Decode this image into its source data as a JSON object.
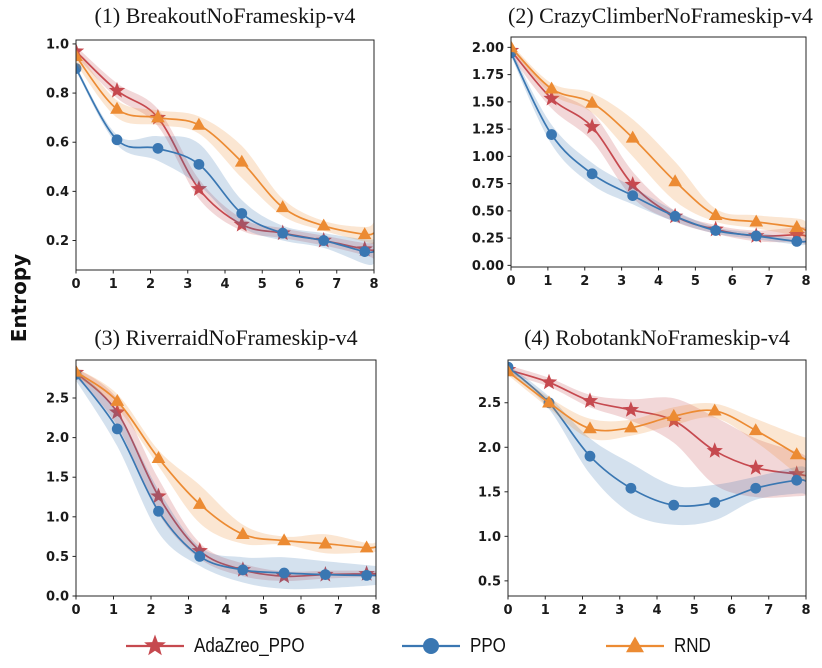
{
  "ylabel": "Entropy",
  "legend": [
    {
      "label": "AdaZreo_PPO",
      "marker": "star",
      "color": "#c6494f"
    },
    {
      "label": "PPO",
      "marker": "circle",
      "color": "#3a77b2"
    },
    {
      "label": "RND",
      "marker": "triangle",
      "color": "#ec8b33"
    }
  ],
  "chart_data": [
    {
      "type": "line",
      "title": "(1) BreakoutNoFrameskip-v4",
      "x": [
        0,
        1.1,
        2.2,
        3.3,
        4.45,
        5.55,
        6.65,
        7.75,
        8.0
      ],
      "xlim": [
        0,
        8
      ],
      "ylim": [
        0.08,
        1.016
      ],
      "xtick_values": [
        0,
        1,
        2,
        3,
        4,
        5,
        6,
        7,
        8
      ],
      "xtick_labels": [
        "0",
        "1",
        "2",
        "3",
        "4",
        "5",
        "6",
        "7",
        "8"
      ],
      "ytick_values": [
        0.2,
        0.4,
        0.6,
        0.8,
        1.0
      ],
      "ytick_labels": [
        "0.2",
        "0.4",
        "0.6",
        "0.8",
        "1.0"
      ],
      "series": [
        {
          "name": "AdaZreo_PPO",
          "color": "#c6494f",
          "marker": "star",
          "marker_count": 8,
          "y": [
            0.97,
            0.81,
            0.7,
            0.41,
            0.265,
            0.23,
            0.2,
            0.165,
            0.16
          ],
          "band": [
            0.02,
            0.03,
            0.035,
            0.04,
            0.025,
            0.02,
            0.02,
            0.025,
            0.035
          ]
        },
        {
          "name": "PPO",
          "color": "#3a77b2",
          "marker": "circle",
          "marker_count": 8,
          "y": [
            0.9,
            0.61,
            0.575,
            0.51,
            0.31,
            0.23,
            0.2,
            0.155,
            0.155
          ],
          "band": [
            0.01,
            0.02,
            0.05,
            0.085,
            0.055,
            0.03,
            0.03,
            0.05,
            0.05
          ]
        },
        {
          "name": "RND",
          "color": "#ec8b33",
          "marker": "triangle",
          "marker_count": 8,
          "y": [
            0.95,
            0.735,
            0.7,
            0.67,
            0.52,
            0.335,
            0.26,
            0.225,
            0.23
          ],
          "band": [
            0.03,
            0.035,
            0.03,
            0.035,
            0.065,
            0.035,
            0.02,
            0.03,
            0.045
          ]
        }
      ]
    },
    {
      "type": "line",
      "title": "(2) CrazyClimberNoFrameskip-v4",
      "x": [
        0,
        1.1,
        2.2,
        3.3,
        4.45,
        5.55,
        6.65,
        7.75,
        8.0
      ],
      "xlim": [
        0,
        8
      ],
      "ylim": [
        -0.015,
        2.095
      ],
      "xtick_values": [
        0,
        1,
        2,
        3,
        4,
        5,
        6,
        7,
        8
      ],
      "xtick_labels": [
        "0",
        "1",
        "2",
        "3",
        "4",
        "5",
        "6",
        "7",
        "8"
      ],
      "ytick_values": [
        0.0,
        0.25,
        0.5,
        0.75,
        1.0,
        1.25,
        1.5,
        1.75,
        2.0
      ],
      "ytick_labels": [
        "0.00",
        "0.25",
        "0.50",
        "0.75",
        "1.00",
        "1.25",
        "1.50",
        "1.75",
        "2.00"
      ],
      "series": [
        {
          "name": "AdaZreo_PPO",
          "color": "#c6494f",
          "marker": "star",
          "marker_count": 8,
          "y": [
            1.97,
            1.53,
            1.27,
            0.74,
            0.45,
            0.33,
            0.27,
            0.28,
            0.27
          ],
          "band": [
            0.05,
            0.09,
            0.13,
            0.12,
            0.05,
            0.04,
            0.05,
            0.07,
            0.08
          ]
        },
        {
          "name": "PPO",
          "color": "#3a77b2",
          "marker": "circle",
          "marker_count": 8,
          "y": [
            1.95,
            1.2,
            0.84,
            0.64,
            0.45,
            0.32,
            0.27,
            0.22,
            0.22
          ],
          "band": [
            0.03,
            0.09,
            0.1,
            0.08,
            0.05,
            0.03,
            0.03,
            0.03,
            0.03
          ]
        },
        {
          "name": "RND",
          "color": "#ec8b33",
          "marker": "triangle",
          "marker_count": 8,
          "y": [
            2.0,
            1.62,
            1.49,
            1.17,
            0.77,
            0.46,
            0.4,
            0.35,
            0.32
          ],
          "band": [
            0.03,
            0.05,
            0.09,
            0.17,
            0.18,
            0.06,
            0.06,
            0.08,
            0.08
          ]
        }
      ]
    },
    {
      "type": "line",
      "title": "(3) RiverraidNoFrameskip-v4",
      "x": [
        0,
        1.1,
        2.2,
        3.3,
        4.45,
        5.55,
        6.65,
        7.75,
        8.0
      ],
      "xlim": [
        0,
        8
      ],
      "ylim": [
        0.0,
        2.98
      ],
      "xtick_values": [
        0,
        1,
        2,
        3,
        4,
        5,
        6,
        7,
        8
      ],
      "xtick_labels": [
        "0",
        "1",
        "2",
        "3",
        "4",
        "5",
        "6",
        "7",
        "8"
      ],
      "ytick_values": [
        0.0,
        0.5,
        1.0,
        1.5,
        2.0,
        2.5
      ],
      "ytick_labels": [
        "0.0",
        "0.5",
        "1.0",
        "1.5",
        "2.0",
        "2.5"
      ],
      "series": [
        {
          "name": "AdaZreo_PPO",
          "color": "#c6494f",
          "marker": "star",
          "marker_count": 8,
          "y": [
            2.82,
            2.32,
            1.26,
            0.57,
            0.33,
            0.25,
            0.27,
            0.28,
            0.28
          ],
          "band": [
            0.06,
            0.17,
            0.22,
            0.1,
            0.08,
            0.06,
            0.05,
            0.04,
            0.04
          ]
        },
        {
          "name": "PPO",
          "color": "#3a77b2",
          "marker": "circle",
          "marker_count": 8,
          "y": [
            2.8,
            2.11,
            1.07,
            0.5,
            0.33,
            0.29,
            0.27,
            0.26,
            0.26
          ],
          "band": [
            0.08,
            0.22,
            0.27,
            0.12,
            0.16,
            0.2,
            0.17,
            0.13,
            0.12
          ]
        },
        {
          "name": "RND",
          "color": "#ec8b33",
          "marker": "triangle",
          "marker_count": 8,
          "y": [
            2.83,
            2.46,
            1.74,
            1.16,
            0.78,
            0.7,
            0.66,
            0.61,
            0.62
          ],
          "band": [
            0.05,
            0.09,
            0.1,
            0.24,
            0.12,
            0.05,
            0.12,
            0.06,
            0.06
          ]
        }
      ]
    },
    {
      "type": "line",
      "title": "(4) RobotankNoFrameskip-v4",
      "x": [
        0,
        1.1,
        2.2,
        3.3,
        4.45,
        5.55,
        6.65,
        7.75,
        8.0
      ],
      "xlim": [
        0,
        8
      ],
      "ylim": [
        0.33,
        2.98
      ],
      "xtick_values": [
        0,
        1,
        2,
        3,
        4,
        5,
        6,
        7,
        8
      ],
      "xtick_labels": [
        "0",
        "1",
        "2",
        "3",
        "4",
        "5",
        "6",
        "7",
        "8"
      ],
      "ytick_values": [
        0.5,
        1.0,
        1.5,
        2.0,
        2.5
      ],
      "ytick_labels": [
        "0.5",
        "1.0",
        "1.5",
        "2.0",
        "2.5"
      ],
      "series": [
        {
          "name": "AdaZreo_PPO",
          "color": "#c6494f",
          "marker": "star",
          "marker_count": 8,
          "y": [
            2.87,
            2.73,
            2.52,
            2.42,
            2.3,
            1.96,
            1.77,
            1.7,
            1.68
          ],
          "band": [
            0.05,
            0.05,
            0.07,
            0.12,
            0.25,
            0.38,
            0.33,
            0.25,
            0.22
          ]
        },
        {
          "name": "PPO",
          "color": "#3a77b2",
          "marker": "circle",
          "marker_count": 8,
          "y": [
            2.9,
            2.5,
            1.9,
            1.54,
            1.35,
            1.38,
            1.54,
            1.63,
            1.62
          ],
          "band": [
            0.03,
            0.07,
            0.2,
            0.28,
            0.22,
            0.2,
            0.13,
            0.15,
            0.15
          ]
        },
        {
          "name": "RND",
          "color": "#ec8b33",
          "marker": "triangle",
          "marker_count": 8,
          "y": [
            2.85,
            2.5,
            2.21,
            2.22,
            2.35,
            2.41,
            2.19,
            1.92,
            1.86
          ],
          "band": [
            0.04,
            0.06,
            0.11,
            0.09,
            0.1,
            0.08,
            0.13,
            0.22,
            0.25
          ]
        }
      ]
    }
  ]
}
